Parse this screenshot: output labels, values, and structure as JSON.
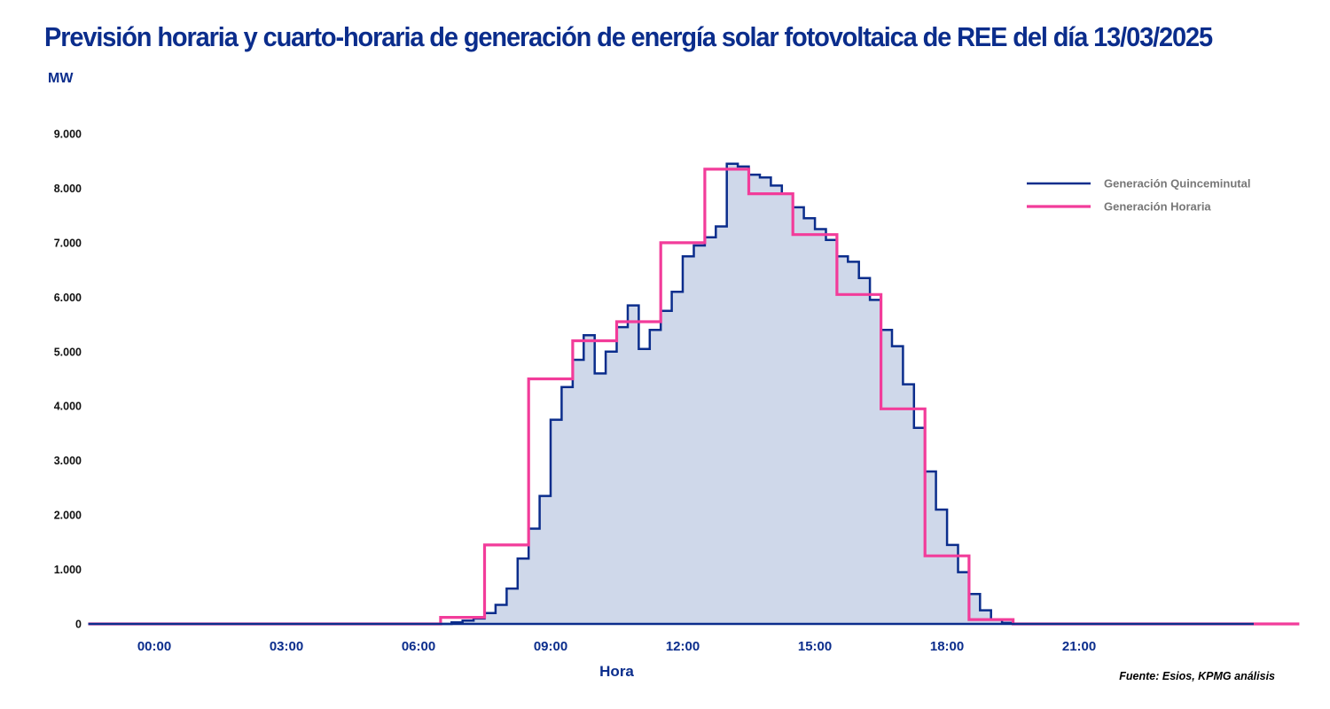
{
  "chart_data": {
    "type": "line",
    "title": "Previsión horaria y cuarto-horaria de generación de energía solar fotovoltaica de REE del día 13/03/2025",
    "ylabel": "MW",
    "xlabel": "Hora",
    "source": "Fuente: Esios, KPMG análisis",
    "ylim": [
      0,
      9000
    ],
    "xlim": [
      -1.5,
      26.5
    ],
    "y_ticks": [
      {
        "value": 0,
        "label": "0"
      },
      {
        "value": 1000,
        "label": "1.000"
      },
      {
        "value": 2000,
        "label": "2.000"
      },
      {
        "value": 3000,
        "label": "3.000"
      },
      {
        "value": 4000,
        "label": "4.000"
      },
      {
        "value": 5000,
        "label": "5.000"
      },
      {
        "value": 6000,
        "label": "6.000"
      },
      {
        "value": 7000,
        "label": "7.000"
      },
      {
        "value": 8000,
        "label": "8.000"
      },
      {
        "value": 9000,
        "label": "9.000"
      }
    ],
    "x_ticks": [
      {
        "value": 0,
        "label": "00:00"
      },
      {
        "value": 3,
        "label": "03:00"
      },
      {
        "value": 6,
        "label": "06:00"
      },
      {
        "value": 9,
        "label": "09:00"
      },
      {
        "value": 12,
        "label": "12:00"
      },
      {
        "value": 15,
        "label": "15:00"
      },
      {
        "value": 18,
        "label": "18:00"
      },
      {
        "value": 21,
        "label": "21:00"
      }
    ],
    "grid": false,
    "legend_position": "top-right",
    "series": [
      {
        "name": "Generación Quinceminutal",
        "color": "#0b2d8c",
        "fill": "#cfd8ea",
        "step": "post",
        "interval_hours": 0.25,
        "x_start": 6.5,
        "values": [
          0,
          30,
          60,
          100,
          200,
          350,
          650,
          1200,
          1750,
          2350,
          3750,
          4350,
          4850,
          5300,
          4600,
          5000,
          5450,
          5850,
          5050,
          5400,
          5750,
          6100,
          6750,
          6950,
          7100,
          7300,
          8450,
          8400,
          8250,
          8200,
          8050,
          7900,
          7650,
          7450,
          7250,
          7050,
          6750,
          6650,
          6350,
          5950,
          5400,
          5100,
          4400,
          3600,
          2800,
          2100,
          1450,
          950,
          550,
          250,
          80,
          20,
          0
        ]
      },
      {
        "name": "Generación Horaria",
        "color": "#f23c9a",
        "step": "post",
        "interval_hours": 1,
        "x_start": -1.5,
        "values": [
          0,
          0,
          0,
          0,
          0,
          0,
          0,
          0,
          120,
          1450,
          4500,
          5200,
          5550,
          7000,
          8350,
          7900,
          7150,
          6050,
          3950,
          1250,
          80,
          0,
          0,
          0,
          0,
          0,
          0,
          0
        ],
        "x_end": 26.0
      }
    ]
  }
}
